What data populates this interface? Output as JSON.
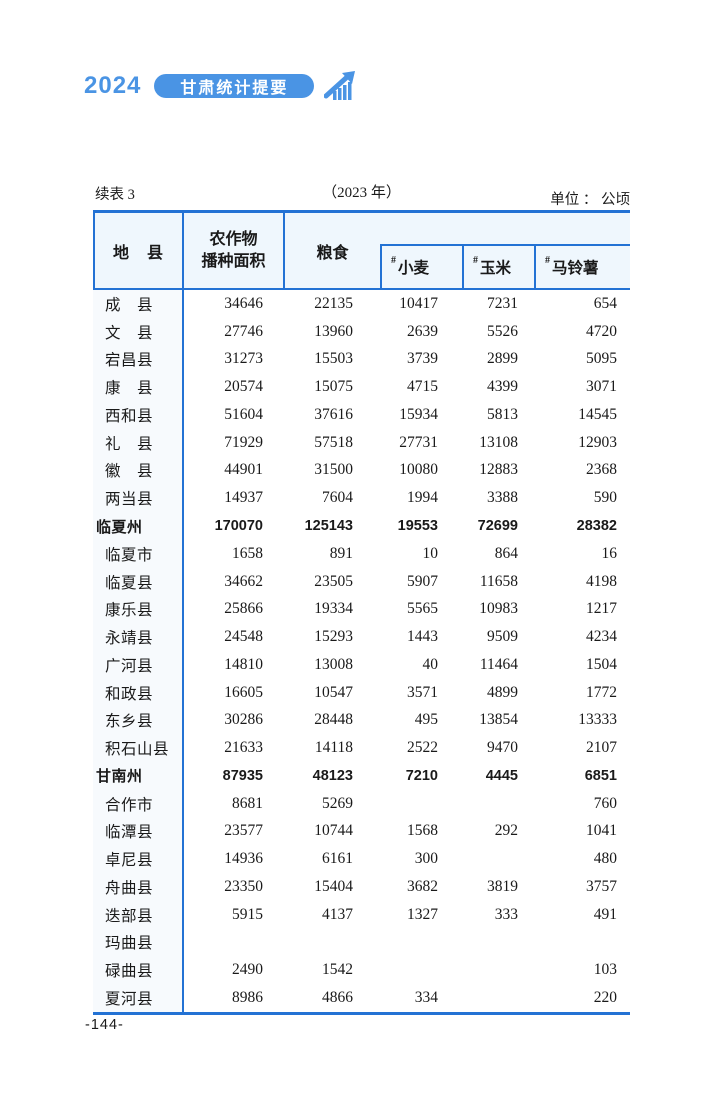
{
  "brand": {
    "year": "2024",
    "title": "甘肃统计提要"
  },
  "caption": {
    "left": "续表 3",
    "center": "（2023 年）",
    "right": "单位 ： 公顷"
  },
  "table": {
    "headers": {
      "region": "地　县",
      "crop_area": [
        "农作物",
        "播种面积"
      ],
      "grain": "粮食",
      "sub_prefix": "#",
      "wheat": "小麦",
      "corn": "玉米",
      "potato": "马铃薯"
    },
    "rows": [
      {
        "label": "成　县",
        "level": "county",
        "values": [
          "34646",
          "22135",
          "10417",
          "7231",
          "654"
        ]
      },
      {
        "label": "文　县",
        "level": "county",
        "values": [
          "27746",
          "13960",
          "2639",
          "5526",
          "4720"
        ]
      },
      {
        "label": "宕昌县",
        "level": "county",
        "values": [
          "31273",
          "15503",
          "3739",
          "2899",
          "5095"
        ]
      },
      {
        "label": "康　县",
        "level": "county",
        "values": [
          "20574",
          "15075",
          "4715",
          "4399",
          "3071"
        ]
      },
      {
        "label": "西和县",
        "level": "county",
        "values": [
          "51604",
          "37616",
          "15934",
          "5813",
          "14545"
        ]
      },
      {
        "label": "礼　县",
        "level": "county",
        "values": [
          "71929",
          "57518",
          "27731",
          "13108",
          "12903"
        ]
      },
      {
        "label": "徽　县",
        "level": "county",
        "values": [
          "44901",
          "31500",
          "10080",
          "12883",
          "2368"
        ]
      },
      {
        "label": "两当县",
        "level": "county",
        "values": [
          "14937",
          "7604",
          "1994",
          "3388",
          "590"
        ]
      },
      {
        "label": "临夏州",
        "level": "prefecture",
        "values": [
          "170070",
          "125143",
          "19553",
          "72699",
          "28382"
        ]
      },
      {
        "label": "临夏市",
        "level": "county",
        "values": [
          "1658",
          "891",
          "10",
          "864",
          "16"
        ]
      },
      {
        "label": "临夏县",
        "level": "county",
        "values": [
          "34662",
          "23505",
          "5907",
          "11658",
          "4198"
        ]
      },
      {
        "label": "康乐县",
        "level": "county",
        "values": [
          "25866",
          "19334",
          "5565",
          "10983",
          "1217"
        ]
      },
      {
        "label": "永靖县",
        "level": "county",
        "values": [
          "24548",
          "15293",
          "1443",
          "9509",
          "4234"
        ]
      },
      {
        "label": "广河县",
        "level": "county",
        "values": [
          "14810",
          "13008",
          "40",
          "11464",
          "1504"
        ]
      },
      {
        "label": "和政县",
        "level": "county",
        "values": [
          "16605",
          "10547",
          "3571",
          "4899",
          "1772"
        ]
      },
      {
        "label": "东乡县",
        "level": "county",
        "values": [
          "30286",
          "28448",
          "495",
          "13854",
          "13333"
        ]
      },
      {
        "label": "积石山县",
        "level": "county",
        "values": [
          "21633",
          "14118",
          "2522",
          "9470",
          "2107"
        ]
      },
      {
        "label": "甘南州",
        "level": "prefecture",
        "values": [
          "87935",
          "48123",
          "7210",
          "4445",
          "6851"
        ]
      },
      {
        "label": "合作市",
        "level": "county",
        "values": [
          "8681",
          "5269",
          "",
          "",
          "760"
        ]
      },
      {
        "label": "临潭县",
        "level": "county",
        "values": [
          "23577",
          "10744",
          "1568",
          "292",
          "1041"
        ]
      },
      {
        "label": "卓尼县",
        "level": "county",
        "values": [
          "14936",
          "6161",
          "300",
          "",
          "480"
        ]
      },
      {
        "label": "舟曲县",
        "level": "county",
        "values": [
          "23350",
          "15404",
          "3682",
          "3819",
          "3757"
        ]
      },
      {
        "label": "迭部县",
        "level": "county",
        "values": [
          "5915",
          "4137",
          "1327",
          "333",
          "491"
        ]
      },
      {
        "label": "玛曲县",
        "level": "county",
        "values": [
          "",
          "",
          "",
          "",
          ""
        ]
      },
      {
        "label": "碌曲县",
        "level": "county",
        "values": [
          "2490",
          "1542",
          "",
          "",
          "103"
        ]
      },
      {
        "label": "夏河县",
        "level": "county",
        "values": [
          "8986",
          "4866",
          "334",
          "",
          "220"
        ]
      }
    ]
  },
  "footer": {
    "page_number": "-144-"
  },
  "colors": {
    "accent": "#4a94e4",
    "table_border": "#2372d4",
    "header_bg": "#eff7fd",
    "label_col_bg": "#f7fafd"
  }
}
